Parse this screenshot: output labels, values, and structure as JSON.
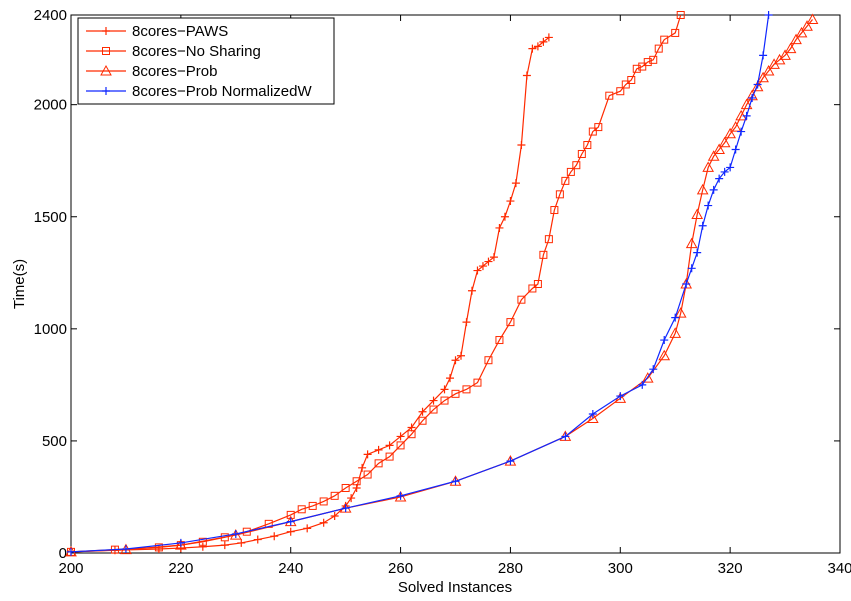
{
  "chart_data": {
    "type": "line",
    "xlabel": "Solved Instances",
    "ylabel": "Time(s)",
    "xlim": [
      200,
      340
    ],
    "ylim": [
      0,
      2400
    ],
    "xticks": [
      200,
      220,
      240,
      260,
      280,
      300,
      320,
      340
    ],
    "yticks": [
      0,
      500,
      1000,
      1500,
      2000,
      2400
    ],
    "grid": false,
    "legend_position": "top-left",
    "series": [
      {
        "name": "8cores−PAWS",
        "color": "#ff2a00",
        "marker": "plus",
        "points": [
          [
            200,
            5
          ],
          [
            208,
            12
          ],
          [
            216,
            18
          ],
          [
            220,
            22
          ],
          [
            224,
            28
          ],
          [
            228,
            35
          ],
          [
            231,
            45
          ],
          [
            234,
            60
          ],
          [
            237,
            75
          ],
          [
            240,
            95
          ],
          [
            243,
            110
          ],
          [
            246,
            135
          ],
          [
            248,
            165
          ],
          [
            250,
            210
          ],
          [
            251,
            245
          ],
          [
            252,
            290
          ],
          [
            253,
            380
          ],
          [
            254,
            440
          ],
          [
            256,
            460
          ],
          [
            258,
            480
          ],
          [
            260,
            520
          ],
          [
            262,
            560
          ],
          [
            264,
            630
          ],
          [
            266,
            680
          ],
          [
            268,
            730
          ],
          [
            269,
            780
          ],
          [
            270,
            860
          ],
          [
            271,
            880
          ],
          [
            272,
            1030
          ],
          [
            273,
            1170
          ],
          [
            274,
            1260
          ],
          [
            275,
            1280
          ],
          [
            276,
            1300
          ],
          [
            277,
            1320
          ],
          [
            278,
            1450
          ],
          [
            279,
            1500
          ],
          [
            280,
            1570
          ],
          [
            281,
            1650
          ],
          [
            282,
            1820
          ],
          [
            283,
            2130
          ],
          [
            284,
            2250
          ],
          [
            285,
            2260
          ],
          [
            286,
            2280
          ],
          [
            287,
            2300
          ]
        ]
      },
      {
        "name": "8cores−No Sharing",
        "color": "#ff2a00",
        "marker": "square",
        "points": [
          [
            200,
            5
          ],
          [
            208,
            15
          ],
          [
            216,
            25
          ],
          [
            220,
            35
          ],
          [
            224,
            50
          ],
          [
            228,
            70
          ],
          [
            232,
            95
          ],
          [
            236,
            130
          ],
          [
            240,
            170
          ],
          [
            242,
            195
          ],
          [
            244,
            210
          ],
          [
            246,
            230
          ],
          [
            248,
            255
          ],
          [
            250,
            290
          ],
          [
            252,
            320
          ],
          [
            254,
            350
          ],
          [
            256,
            400
          ],
          [
            258,
            430
          ],
          [
            260,
            480
          ],
          [
            262,
            530
          ],
          [
            264,
            590
          ],
          [
            266,
            640
          ],
          [
            268,
            680
          ],
          [
            270,
            710
          ],
          [
            272,
            730
          ],
          [
            274,
            760
          ],
          [
            276,
            860
          ],
          [
            278,
            950
          ],
          [
            280,
            1030
          ],
          [
            282,
            1130
          ],
          [
            284,
            1180
          ],
          [
            285,
            1200
          ],
          [
            286,
            1330
          ],
          [
            287,
            1400
          ],
          [
            288,
            1530
          ],
          [
            289,
            1600
          ],
          [
            290,
            1660
          ],
          [
            291,
            1700
          ],
          [
            292,
            1730
          ],
          [
            293,
            1780
          ],
          [
            294,
            1820
          ],
          [
            295,
            1880
          ],
          [
            296,
            1900
          ],
          [
            298,
            2040
          ],
          [
            300,
            2060
          ],
          [
            301,
            2090
          ],
          [
            302,
            2110
          ],
          [
            303,
            2160
          ],
          [
            304,
            2170
          ],
          [
            305,
            2190
          ],
          [
            306,
            2200
          ],
          [
            307,
            2250
          ],
          [
            308,
            2290
          ],
          [
            310,
            2320
          ],
          [
            311,
            2400
          ]
        ]
      },
      {
        "name": "8cores−Prob",
        "color": "#ff2a00",
        "marker": "triangle",
        "points": [
          [
            200,
            5
          ],
          [
            210,
            15
          ],
          [
            220,
            35
          ],
          [
            230,
            80
          ],
          [
            240,
            140
          ],
          [
            250,
            200
          ],
          [
            260,
            250
          ],
          [
            270,
            320
          ],
          [
            280,
            410
          ],
          [
            290,
            520
          ],
          [
            295,
            600
          ],
          [
            300,
            690
          ],
          [
            305,
            780
          ],
          [
            308,
            880
          ],
          [
            310,
            980
          ],
          [
            311,
            1070
          ],
          [
            312,
            1200
          ],
          [
            313,
            1380
          ],
          [
            314,
            1510
          ],
          [
            315,
            1620
          ],
          [
            316,
            1720
          ],
          [
            317,
            1770
          ],
          [
            318,
            1800
          ],
          [
            319,
            1830
          ],
          [
            320,
            1870
          ],
          [
            321,
            1900
          ],
          [
            322,
            1950
          ],
          [
            323,
            2000
          ],
          [
            324,
            2040
          ],
          [
            325,
            2080
          ],
          [
            326,
            2120
          ],
          [
            327,
            2150
          ],
          [
            328,
            2180
          ],
          [
            329,
            2200
          ],
          [
            330,
            2220
          ],
          [
            331,
            2250
          ],
          [
            332,
            2290
          ],
          [
            333,
            2320
          ],
          [
            334,
            2350
          ],
          [
            335,
            2380
          ]
        ]
      },
      {
        "name": "8cores−Prob NormalizedW",
        "color": "#1028ff",
        "marker": "plus",
        "points": [
          [
            200,
            5
          ],
          [
            210,
            18
          ],
          [
            220,
            45
          ],
          [
            230,
            85
          ],
          [
            240,
            140
          ],
          [
            250,
            200
          ],
          [
            260,
            255
          ],
          [
            270,
            320
          ],
          [
            280,
            410
          ],
          [
            290,
            520
          ],
          [
            295,
            620
          ],
          [
            300,
            700
          ],
          [
            304,
            750
          ],
          [
            306,
            820
          ],
          [
            308,
            950
          ],
          [
            310,
            1050
          ],
          [
            312,
            1200
          ],
          [
            313,
            1270
          ],
          [
            314,
            1340
          ],
          [
            315,
            1460
          ],
          [
            316,
            1550
          ],
          [
            317,
            1620
          ],
          [
            318,
            1670
          ],
          [
            319,
            1700
          ],
          [
            320,
            1720
          ],
          [
            321,
            1800
          ],
          [
            322,
            1880
          ],
          [
            323,
            1950
          ],
          [
            324,
            2030
          ],
          [
            325,
            2090
          ],
          [
            326,
            2220
          ],
          [
            327,
            2400
          ]
        ]
      }
    ]
  }
}
